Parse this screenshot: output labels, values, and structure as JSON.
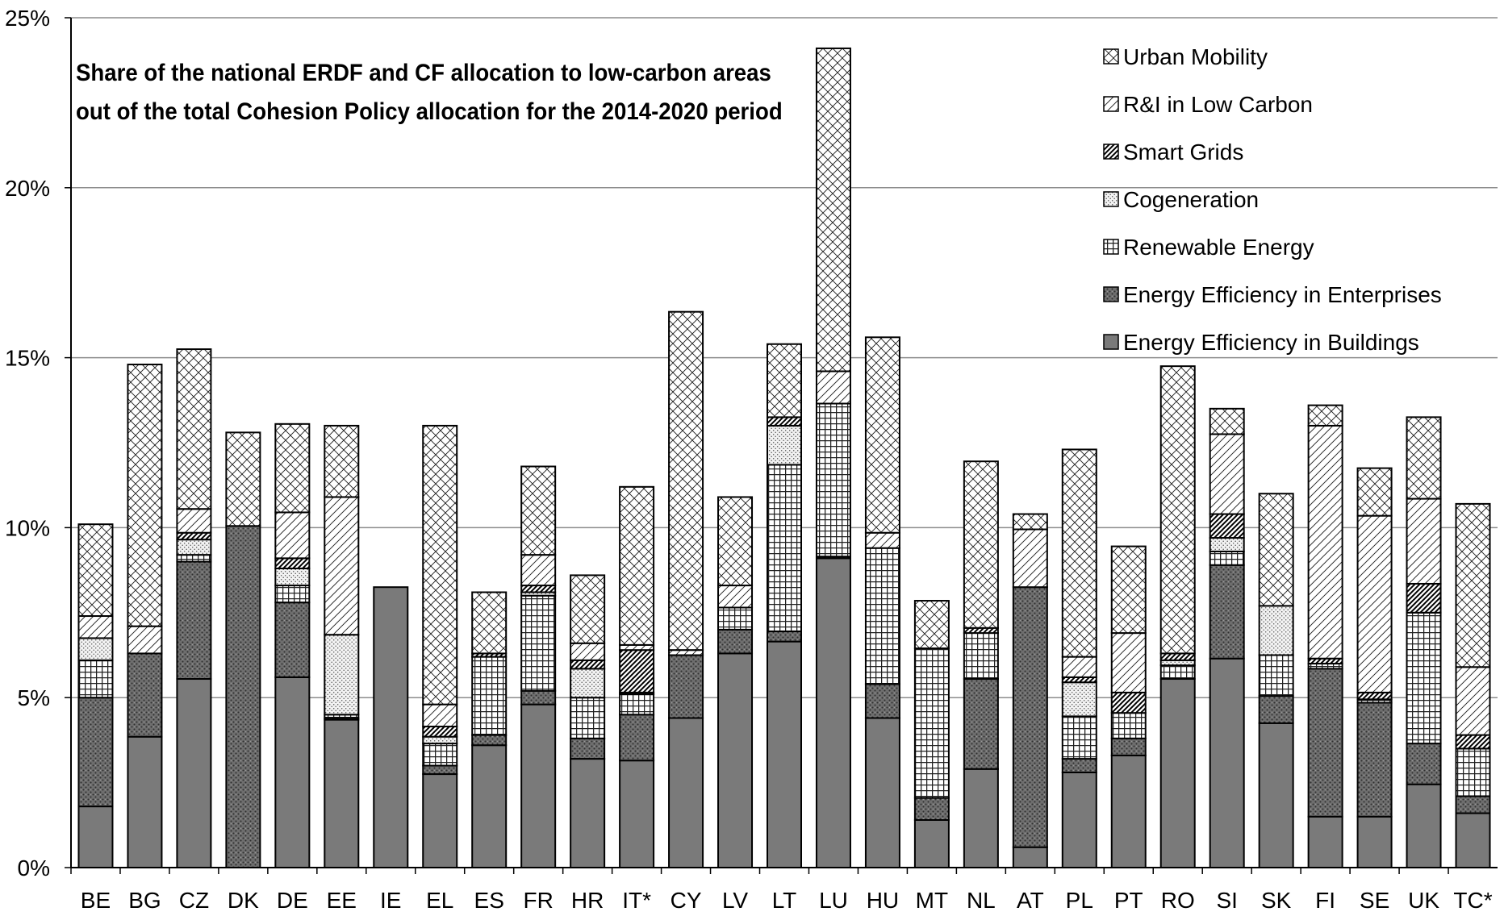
{
  "chart_data": {
    "type": "bar",
    "stacked": true,
    "title": "Share of the national ERDF and CF allocation to low-carbon areas out of the total Cohesion Policy allocation for the 2014-2020 period",
    "title_lines": [
      "Share of the national ERDF and CF allocation to low-carbon areas",
      "out of the total Cohesion Policy allocation for the 2014-2020 period"
    ],
    "ylim": [
      0,
      25
    ],
    "yticks": [
      0,
      5,
      10,
      15,
      20,
      25
    ],
    "ytick_labels": [
      "0%",
      "5%",
      "10%",
      "15%",
      "20%",
      "25%"
    ],
    "grid": true,
    "legend_position": "top-right",
    "categories": [
      "BE",
      "BG",
      "CZ",
      "DK",
      "DE",
      "EE",
      "IE",
      "EL",
      "ES",
      "FR",
      "HR",
      "IT*",
      "CY",
      "LV",
      "LT",
      "LU",
      "HU",
      "MT",
      "NL",
      "AT",
      "PL",
      "PT",
      "RO",
      "SI",
      "SK",
      "FI",
      "SE",
      "UK",
      "TC*"
    ],
    "series": [
      {
        "name": "Energy Efficiency in Buildings",
        "pattern": "solid",
        "values": [
          1.8,
          3.85,
          5.55,
          0,
          5.6,
          4.35,
          8.25,
          2.75,
          3.6,
          4.8,
          3.2,
          3.15,
          4.4,
          6.3,
          6.65,
          9.1,
          4.4,
          1.4,
          2.9,
          0.6,
          2.8,
          3.3,
          5.55,
          6.15,
          4.25,
          1.5,
          1.5,
          2.45,
          1.6
        ]
      },
      {
        "name": "Energy Efficiency in Enterprises",
        "pattern": "dense-dots",
        "values": [
          3.2,
          2.45,
          3.45,
          10.05,
          2.2,
          0.05,
          0,
          0.25,
          0.3,
          0.4,
          0.6,
          1.35,
          1.85,
          0.7,
          0.3,
          0.05,
          1.0,
          0.65,
          2.65,
          7.65,
          0.4,
          0.5,
          0,
          2.75,
          0.8,
          4.35,
          3.35,
          1.2,
          0.5
        ]
      },
      {
        "name": "Renewable Energy",
        "pattern": "grid",
        "values": [
          1.1,
          0,
          0.2,
          0,
          0.5,
          0.1,
          0,
          0.65,
          2.3,
          2.8,
          1.2,
          0.6,
          0,
          0.65,
          4.9,
          4.5,
          4.0,
          4.4,
          1.35,
          0,
          1.25,
          0.75,
          0.4,
          0.4,
          1.2,
          0.15,
          0.1,
          3.85,
          1.4
        ]
      },
      {
        "name": "Cogeneration",
        "pattern": "light-dots",
        "values": [
          0.65,
          0,
          0.45,
          0,
          0.5,
          2.35,
          0,
          0.2,
          0,
          0.1,
          0.85,
          0.05,
          0,
          0,
          1.15,
          0,
          0,
          0,
          0,
          0,
          1.0,
          0,
          0.15,
          0.4,
          1.45,
          0,
          0,
          0,
          0
        ]
      },
      {
        "name": "Smart Grids",
        "pattern": "diagonal",
        "values": [
          0,
          0,
          0.2,
          0,
          0.3,
          0,
          0,
          0.3,
          0.1,
          0.2,
          0.25,
          1.25,
          0,
          0,
          0.25,
          0,
          0,
          0,
          0.15,
          0,
          0.15,
          0.6,
          0.2,
          0.7,
          0,
          0.15,
          0.2,
          0.85,
          0.4
        ]
      },
      {
        "name": "R&I in Low Carbon",
        "pattern": "hatch",
        "values": [
          0.65,
          0.8,
          0.7,
          0,
          1.35,
          4.05,
          0,
          0.65,
          0,
          0.9,
          0.5,
          0.15,
          0.15,
          0.65,
          0,
          0.95,
          0.45,
          0,
          0,
          1.7,
          0.6,
          1.75,
          0,
          2.35,
          0,
          6.85,
          5.2,
          2.5,
          2.0
        ]
      },
      {
        "name": "Urban Mobility",
        "pattern": "crosshatch",
        "values": [
          2.7,
          7.7,
          4.7,
          2.75,
          2.6,
          2.1,
          0,
          8.2,
          1.8,
          2.6,
          2.0,
          4.65,
          9.95,
          2.6,
          2.15,
          9.5,
          5.75,
          1.4,
          4.9,
          0.45,
          6.1,
          2.55,
          8.45,
          0.75,
          3.3,
          0.6,
          1.4,
          2.4,
          4.8
        ]
      }
    ]
  }
}
